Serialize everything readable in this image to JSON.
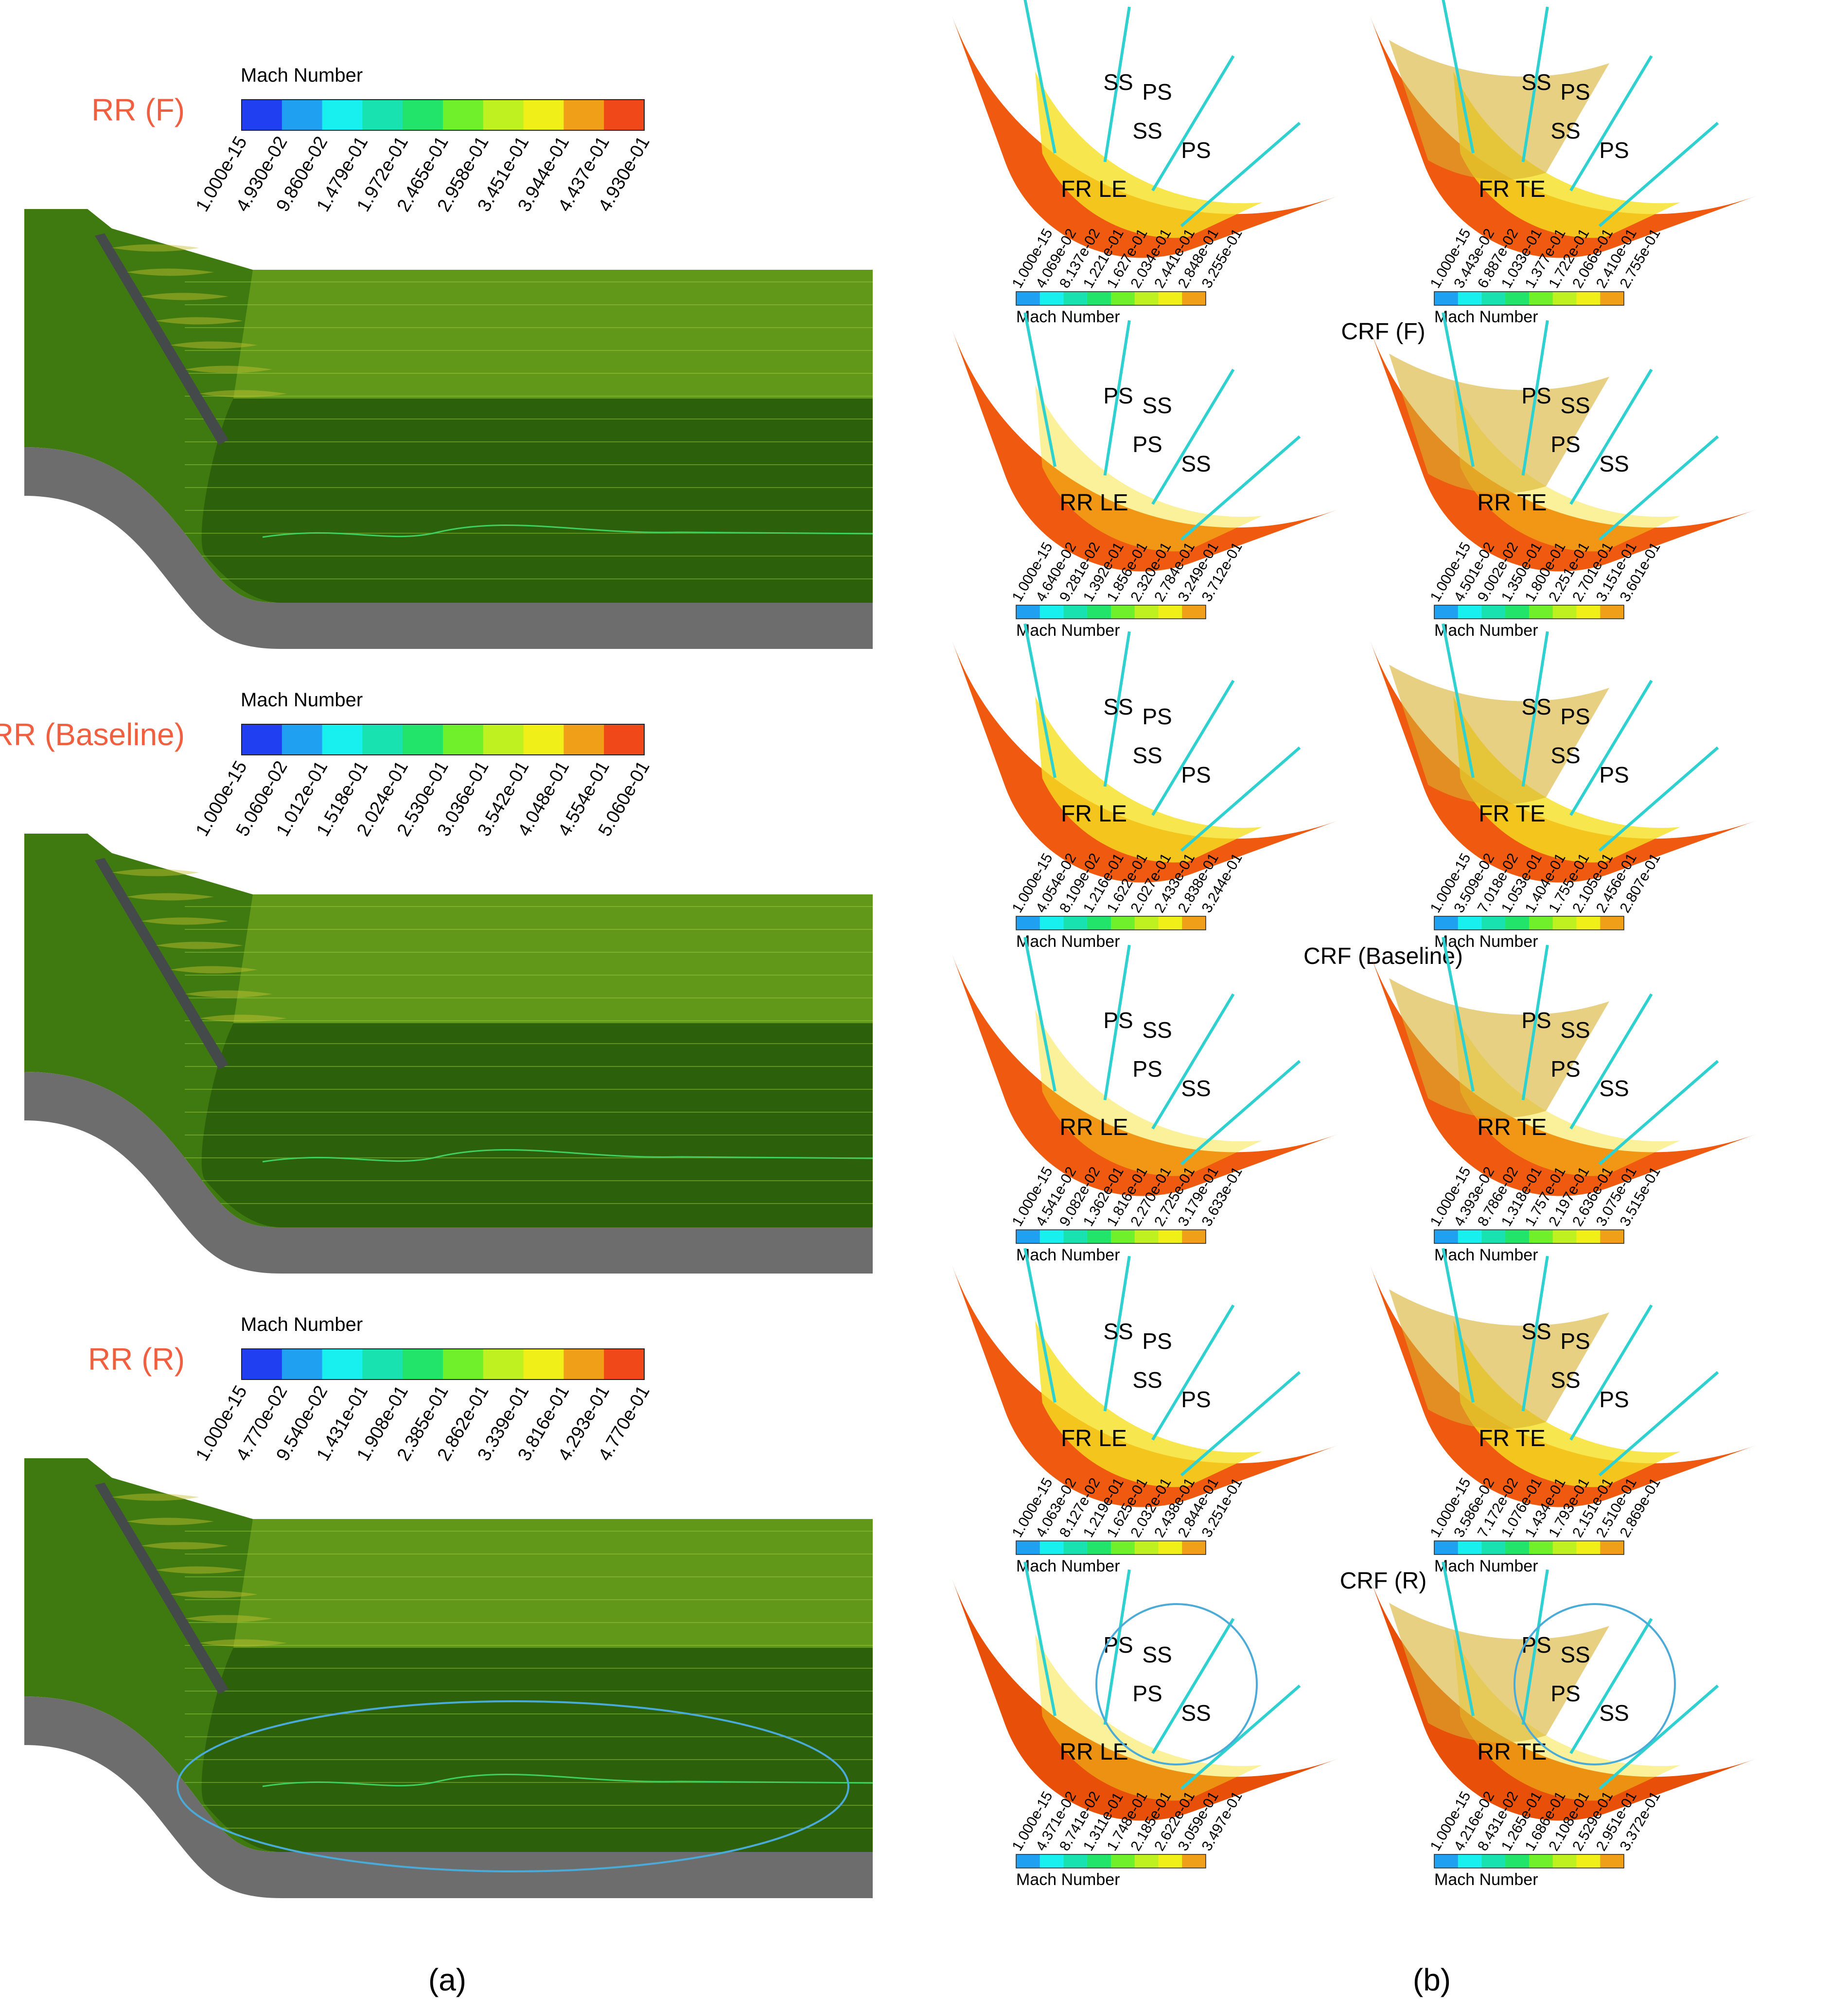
{
  "colors": {
    "colormap": [
      "#1f3ff0",
      "#1fa0f0",
      "#18f0f0",
      "#18e3b0",
      "#22e46a",
      "#6ff02a",
      "#bff020",
      "#f0f018",
      "#f0a018",
      "#f04818"
    ],
    "title_accent": "#f06040",
    "annotation": "#4aaad8",
    "field_dark": "#1f4a08",
    "field_mid": "#3f7a10",
    "field_light": "#7fb022",
    "hub": "#6d6d6d",
    "orange": "#f05a10",
    "yellow": "#f5e020",
    "ochre": "#d9b030"
  },
  "panel_a": {
    "caption": "(a)",
    "views": [
      {
        "title": "RR (F)",
        "legend": {
          "title": "Mach Number",
          "ticks": [
            "1.000e-15",
            "4.930e-02",
            "9.860e-02",
            "1.479e-01",
            "1.972e-01",
            "2.465e-01",
            "2.958e-01",
            "3.451e-01",
            "3.944e-01",
            "4.437e-01",
            "4.930e-01"
          ]
        }
      },
      {
        "title": "RR (Baseline)",
        "legend": {
          "title": "Mach Number",
          "ticks": [
            "1.000e-15",
            "5.060e-02",
            "1.012e-01",
            "1.518e-01",
            "2.024e-01",
            "2.530e-01",
            "3.036e-01",
            "3.542e-01",
            "4.048e-01",
            "4.554e-01",
            "5.060e-01"
          ]
        }
      },
      {
        "title": "RR (R)",
        "legend": {
          "title": "Mach Number",
          "ticks": [
            "1.000e-15",
            "4.770e-02",
            "9.540e-02",
            "1.431e-01",
            "1.908e-01",
            "2.385e-01",
            "2.862e-01",
            "3.339e-01",
            "3.816e-01",
            "4.293e-01",
            "4.770e-01"
          ]
        }
      }
    ]
  },
  "panel_b": {
    "caption": "(b)",
    "groups": [
      {
        "label": "CRF (F)",
        "rows": [
          [
            {
              "name": "FR LE",
              "labels": [
                "SS",
                "PS",
                "SS",
                "PS"
              ],
              "legend": {
                "title": "Mach Number",
                "ticks": [
                  "1.000e-15",
                  "4.069e-02",
                  "8.137e-02",
                  "1.221e-01",
                  "1.627e-01",
                  "2.034e-01",
                  "2.441e-01",
                  "2.848e-01",
                  "3.255e-01"
                ]
              }
            },
            {
              "name": "FR TE",
              "labels": [
                "SS",
                "PS",
                "SS",
                "PS"
              ],
              "legend": {
                "title": "Mach Number",
                "ticks": [
                  "1.000e-15",
                  "3.443e-02",
                  "6.887e-02",
                  "1.033e-01",
                  "1.377e-01",
                  "1.722e-01",
                  "2.066e-01",
                  "2.410e-01",
                  "2.755e-01"
                ]
              }
            }
          ],
          [
            {
              "name": "RR LE",
              "labels": [
                "PS",
                "SS",
                "PS",
                "SS"
              ],
              "legend": {
                "title": "Mach Number",
                "ticks": [
                  "1.000e-15",
                  "4.640e-02",
                  "9.281e-02",
                  "1.392e-01",
                  "1.856e-01",
                  "2.320e-01",
                  "2.784e-01",
                  "3.249e-01",
                  "3.712e-01"
                ]
              }
            },
            {
              "name": "RR TE",
              "labels": [
                "PS",
                "SS",
                "PS",
                "SS"
              ],
              "legend": {
                "title": "Mach Number",
                "ticks": [
                  "1.000e-15",
                  "4.501e-02",
                  "9.002e-02",
                  "1.350e-01",
                  "1.800e-01",
                  "2.251e-01",
                  "2.701e-01",
                  "3.151e-01",
                  "3.601e-01"
                ]
              }
            }
          ]
        ]
      },
      {
        "label": "CRF (Baseline)",
        "rows": [
          [
            {
              "name": "FR LE",
              "labels": [
                "SS",
                "PS",
                "SS",
                "PS"
              ],
              "legend": {
                "title": "Mach Number",
                "ticks": [
                  "1.000e-15",
                  "4.054e-02",
                  "8.109e-02",
                  "1.216e-01",
                  "1.622e-01",
                  "2.027e-01",
                  "2.433e-01",
                  "2.838e-01",
                  "3.244e-01"
                ]
              }
            },
            {
              "name": "FR TE",
              "labels": [
                "SS",
                "PS",
                "SS",
                "PS"
              ],
              "legend": {
                "title": "Mach Number",
                "ticks": [
                  "1.000e-15",
                  "3.509e-02",
                  "7.018e-02",
                  "1.053e-01",
                  "1.404e-01",
                  "1.755e-01",
                  "2.105e-01",
                  "2.456e-01",
                  "2.807e-01"
                ]
              }
            }
          ],
          [
            {
              "name": "RR LE",
              "labels": [
                "PS",
                "SS",
                "PS",
                "SS"
              ],
              "legend": {
                "title": "Mach Number",
                "ticks": [
                  "1.000e-15",
                  "4.541e-02",
                  "9.082e-02",
                  "1.362e-01",
                  "1.816e-01",
                  "2.270e-01",
                  "2.725e-01",
                  "3.179e-01",
                  "3.633e-01"
                ]
              }
            },
            {
              "name": "RR TE",
              "labels": [
                "PS",
                "SS",
                "PS",
                "SS"
              ],
              "legend": {
                "title": "Mach Number",
                "ticks": [
                  "1.000e-15",
                  "4.393e-02",
                  "8.786e-02",
                  "1.318e-01",
                  "1.757e-01",
                  "2.197e-01",
                  "2.636e-01",
                  "3.075e-01",
                  "3.515e-01"
                ]
              }
            }
          ]
        ]
      },
      {
        "label": "CRF (R)",
        "rows": [
          [
            {
              "name": "FR LE",
              "labels": [
                "SS",
                "PS",
                "SS",
                "PS"
              ],
              "legend": {
                "title": "Mach Number",
                "ticks": [
                  "1.000e-15",
                  "4.063e-02",
                  "8.127e-02",
                  "1.219e-01",
                  "1.625e-01",
                  "2.032e-01",
                  "2.438e-01",
                  "2.844e-01",
                  "3.251e-01"
                ]
              }
            },
            {
              "name": "FR TE",
              "labels": [
                "SS",
                "PS",
                "SS",
                "PS"
              ],
              "legend": {
                "title": "Mach Number",
                "ticks": [
                  "1.000e-15",
                  "3.586e-02",
                  "7.172e-02",
                  "1.076e-01",
                  "1.434e-01",
                  "1.793e-01",
                  "2.151e-01",
                  "2.510e-01",
                  "2.869e-01"
                ]
              }
            }
          ],
          [
            {
              "name": "RR LE",
              "labels": [
                "PS",
                "SS",
                "PS",
                "SS"
              ],
              "legend": {
                "title": "Mach Number",
                "ticks": [
                  "1.000e-15",
                  "4.371e-02",
                  "8.741e-02",
                  "1.311e-01",
                  "1.748e-01",
                  "2.185e-01",
                  "2.622e-01",
                  "3.059e-01",
                  "3.497e-01"
                ]
              }
            },
            {
              "name": "RR TE",
              "labels": [
                "PS",
                "SS",
                "PS",
                "SS"
              ],
              "legend": {
                "title": "Mach Number",
                "ticks": [
                  "1.000e-15",
                  "4.216e-02",
                  "8.431e-02",
                  "1.265e-01",
                  "1.686e-01",
                  "2.108e-01",
                  "2.529e-01",
                  "2.951e-01",
                  "3.372e-01"
                ]
              }
            }
          ]
        ]
      }
    ]
  }
}
